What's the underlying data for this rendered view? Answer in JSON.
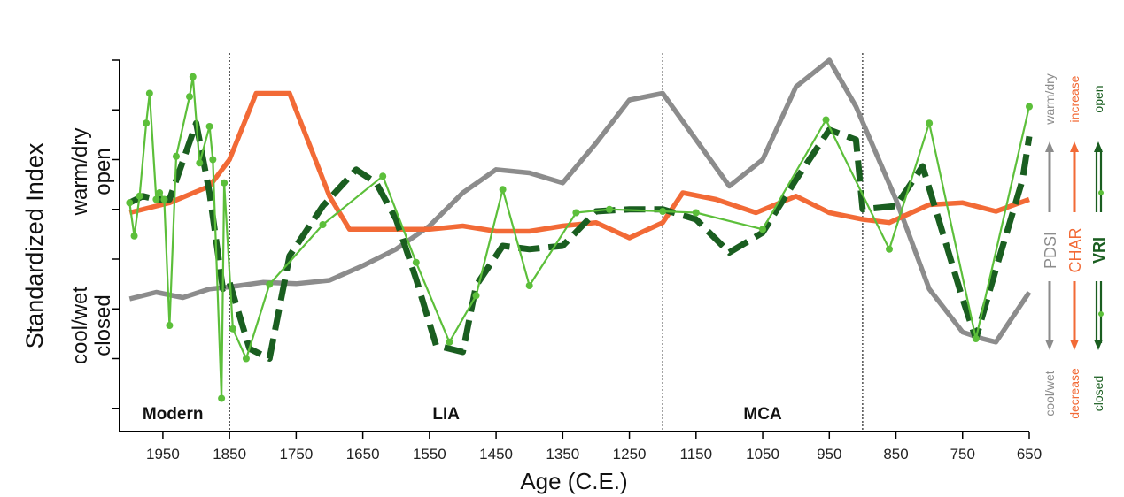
{
  "chart_data": {
    "type": "line",
    "title": "",
    "xlabel": "Age (C.E.)",
    "ylabel_main": "Standardized Index",
    "ylabel_upper": [
      "warm/dry",
      "open"
    ],
    "ylabel_lower": [
      "cool/wet",
      "closed"
    ],
    "xlim": [
      2015,
      650
    ],
    "ylim": [
      -2.6,
      3.0
    ],
    "y_ticks": [
      -2.25,
      -1.5,
      -0.75,
      0,
      0.75,
      1.5,
      2.25,
      3.0
    ],
    "x_ticks": [
      1950,
      1850,
      1750,
      1650,
      1550,
      1450,
      1350,
      1250,
      1150,
      1050,
      950,
      850,
      750,
      650
    ],
    "x_tick_labels": [
      "1950",
      "1850",
      "1750",
      "1650",
      "1550",
      "1450",
      "1350",
      "1250",
      "1150",
      "1050",
      "950",
      "850",
      "750",
      "650"
    ],
    "period_boundaries": [
      1850,
      1200,
      900
    ],
    "periods": [
      {
        "label": "Modern",
        "x": 1935
      },
      {
        "label": "LIA",
        "x": 1525
      },
      {
        "label": "MCA",
        "x": 1050
      }
    ],
    "legend": [
      {
        "name": "PDSI",
        "top": "warm/dry",
        "bottom": "cool/wet",
        "color": "#8c8c8c"
      },
      {
        "name": "CHAR",
        "top": "increase",
        "bottom": "decrease",
        "color": "#f26a36"
      },
      {
        "name": "VRI",
        "top": "open",
        "bottom": "closed",
        "color": "#1a5e20"
      }
    ],
    "series": [
      {
        "name": "PDSI",
        "color": "#8c8c8c",
        "style": "solid",
        "x": [
          2000,
          1960,
          1920,
          1880,
          1850,
          1800,
          1750,
          1700,
          1650,
          1600,
          1550,
          1500,
          1450,
          1400,
          1350,
          1300,
          1250,
          1200,
          1150,
          1100,
          1050,
          1000,
          950,
          910,
          850,
          800,
          750,
          720,
          700,
          650
        ],
        "y": [
          -0.6,
          -0.5,
          -0.58,
          -0.45,
          -0.42,
          -0.35,
          -0.37,
          -0.32,
          -0.1,
          0.15,
          0.5,
          1.0,
          1.35,
          1.3,
          1.15,
          1.75,
          2.4,
          2.5,
          1.8,
          1.1,
          1.5,
          2.6,
          3.0,
          2.3,
          0.9,
          -0.45,
          -1.1,
          -1.2,
          -1.25,
          -0.5
        ]
      },
      {
        "name": "CHAR",
        "color": "#f26a36",
        "style": "solid",
        "x": [
          2000,
          1940,
          1880,
          1850,
          1810,
          1760,
          1700,
          1670,
          1600,
          1550,
          1500,
          1450,
          1400,
          1350,
          1300,
          1250,
          1200,
          1170,
          1120,
          1060,
          1000,
          950,
          900,
          860,
          800,
          750,
          700,
          650
        ],
        "y": [
          0.7,
          0.85,
          1.1,
          1.5,
          2.5,
          2.5,
          0.95,
          0.45,
          0.45,
          0.45,
          0.5,
          0.42,
          0.42,
          0.5,
          0.55,
          0.32,
          0.55,
          1.0,
          0.9,
          0.7,
          0.95,
          0.7,
          0.6,
          0.55,
          0.82,
          0.85,
          0.72,
          0.9
        ]
      },
      {
        "name": "VRI",
        "color": "#1a5e20",
        "style": "dashed",
        "x": [
          2000,
          1980,
          1960,
          1940,
          1900,
          1880,
          1860,
          1850,
          1820,
          1790,
          1760,
          1710,
          1660,
          1630,
          1600,
          1570,
          1540,
          1500,
          1480,
          1440,
          1400,
          1350,
          1300,
          1250,
          1200,
          1150,
          1100,
          1050,
          1000,
          950,
          910,
          900,
          850,
          810,
          780,
          750,
          730,
          700,
          660,
          650
        ],
        "y": [
          0.85,
          0.95,
          0.9,
          0.9,
          2.05,
          1.0,
          -0.45,
          -0.35,
          -1.35,
          -1.5,
          0.05,
          0.8,
          1.35,
          1.15,
          0.6,
          -0.3,
          -1.3,
          -1.4,
          -0.4,
          0.2,
          0.15,
          0.2,
          0.72,
          0.75,
          0.75,
          0.6,
          0.1,
          0.4,
          1.2,
          1.95,
          1.8,
          0.75,
          0.8,
          1.4,
          0.4,
          -0.6,
          -1.2,
          -0.15,
          1.2,
          1.85
        ]
      },
      {
        "name": "VRI (high-resolution)",
        "color": "#5cbf3a",
        "style": "solid-markers",
        "x": [
          2000,
          1993,
          1985,
          1975,
          1970,
          1960,
          1955,
          1948,
          1940,
          1930,
          1910,
          1905,
          1895,
          1880,
          1875,
          1862,
          1858,
          1845,
          1825,
          1790,
          1710,
          1620,
          1570,
          1520,
          1480,
          1440,
          1400,
          1330,
          1280,
          1200,
          1150,
          1050,
          955,
          860,
          800,
          730,
          650
        ],
        "y": [
          0.85,
          0.35,
          0.95,
          2.05,
          2.5,
          0.9,
          1.0,
          0.9,
          -1.0,
          1.55,
          2.45,
          2.75,
          1.45,
          2.0,
          1.5,
          -2.1,
          1.15,
          -1.05,
          -1.5,
          -0.38,
          0.52,
          1.25,
          -0.05,
          -1.25,
          -0.55,
          1.05,
          -0.4,
          0.7,
          0.75,
          0.72,
          0.7,
          0.45,
          2.1,
          0.15,
          2.05,
          -1.2,
          2.3
        ]
      }
    ]
  }
}
